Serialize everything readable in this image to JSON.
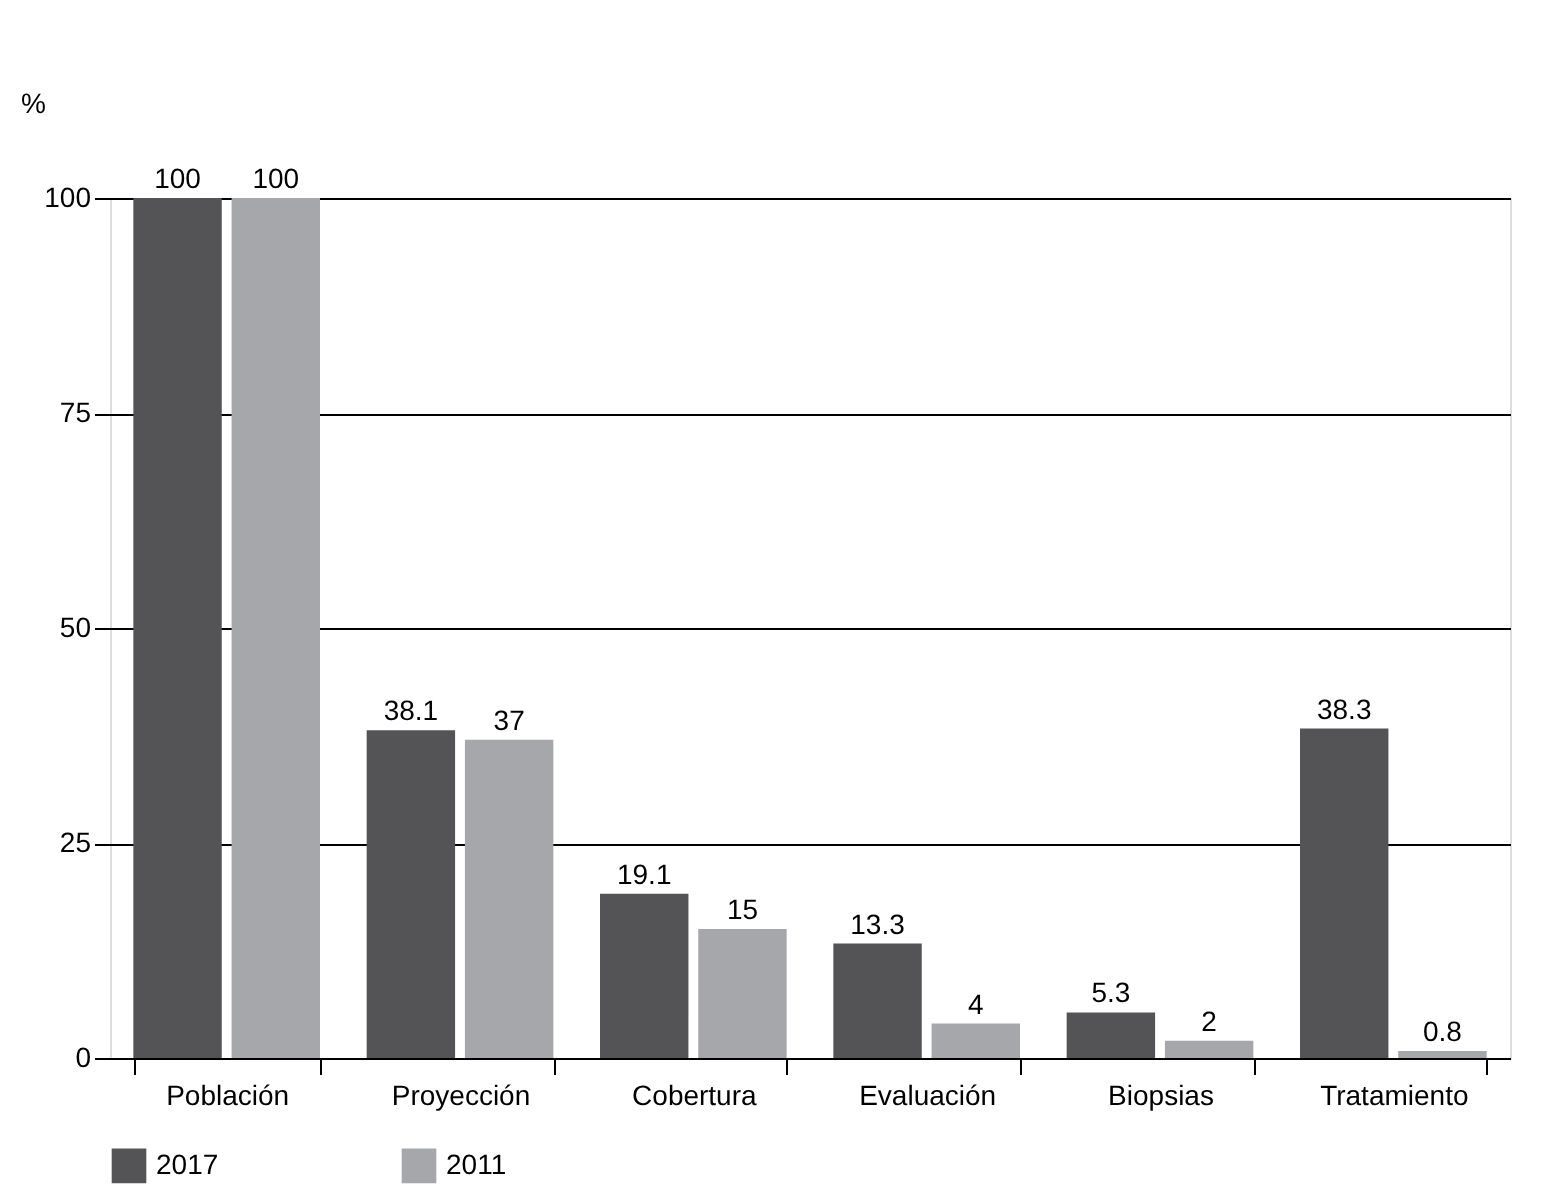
{
  "chart_data": {
    "type": "bar",
    "ylabel": "%",
    "categories": [
      "Población",
      "Proyección",
      "Cobertura",
      "Evaluación",
      "Biopsias",
      "Tratamiento"
    ],
    "series": [
      {
        "name": "2017",
        "color": "#545456",
        "values": [
          100,
          38.1,
          19.1,
          13.3,
          5.3,
          38.3
        ]
      },
      {
        "name": "2011",
        "color": "#a6a7aa",
        "values": [
          100,
          37,
          15,
          4,
          2,
          0.8
        ]
      }
    ],
    "ylim": [
      0,
      100
    ],
    "yticks": [
      0,
      25,
      50,
      75,
      100
    ],
    "grid": "y",
    "legend": "bottom",
    "data_labels": true
  }
}
